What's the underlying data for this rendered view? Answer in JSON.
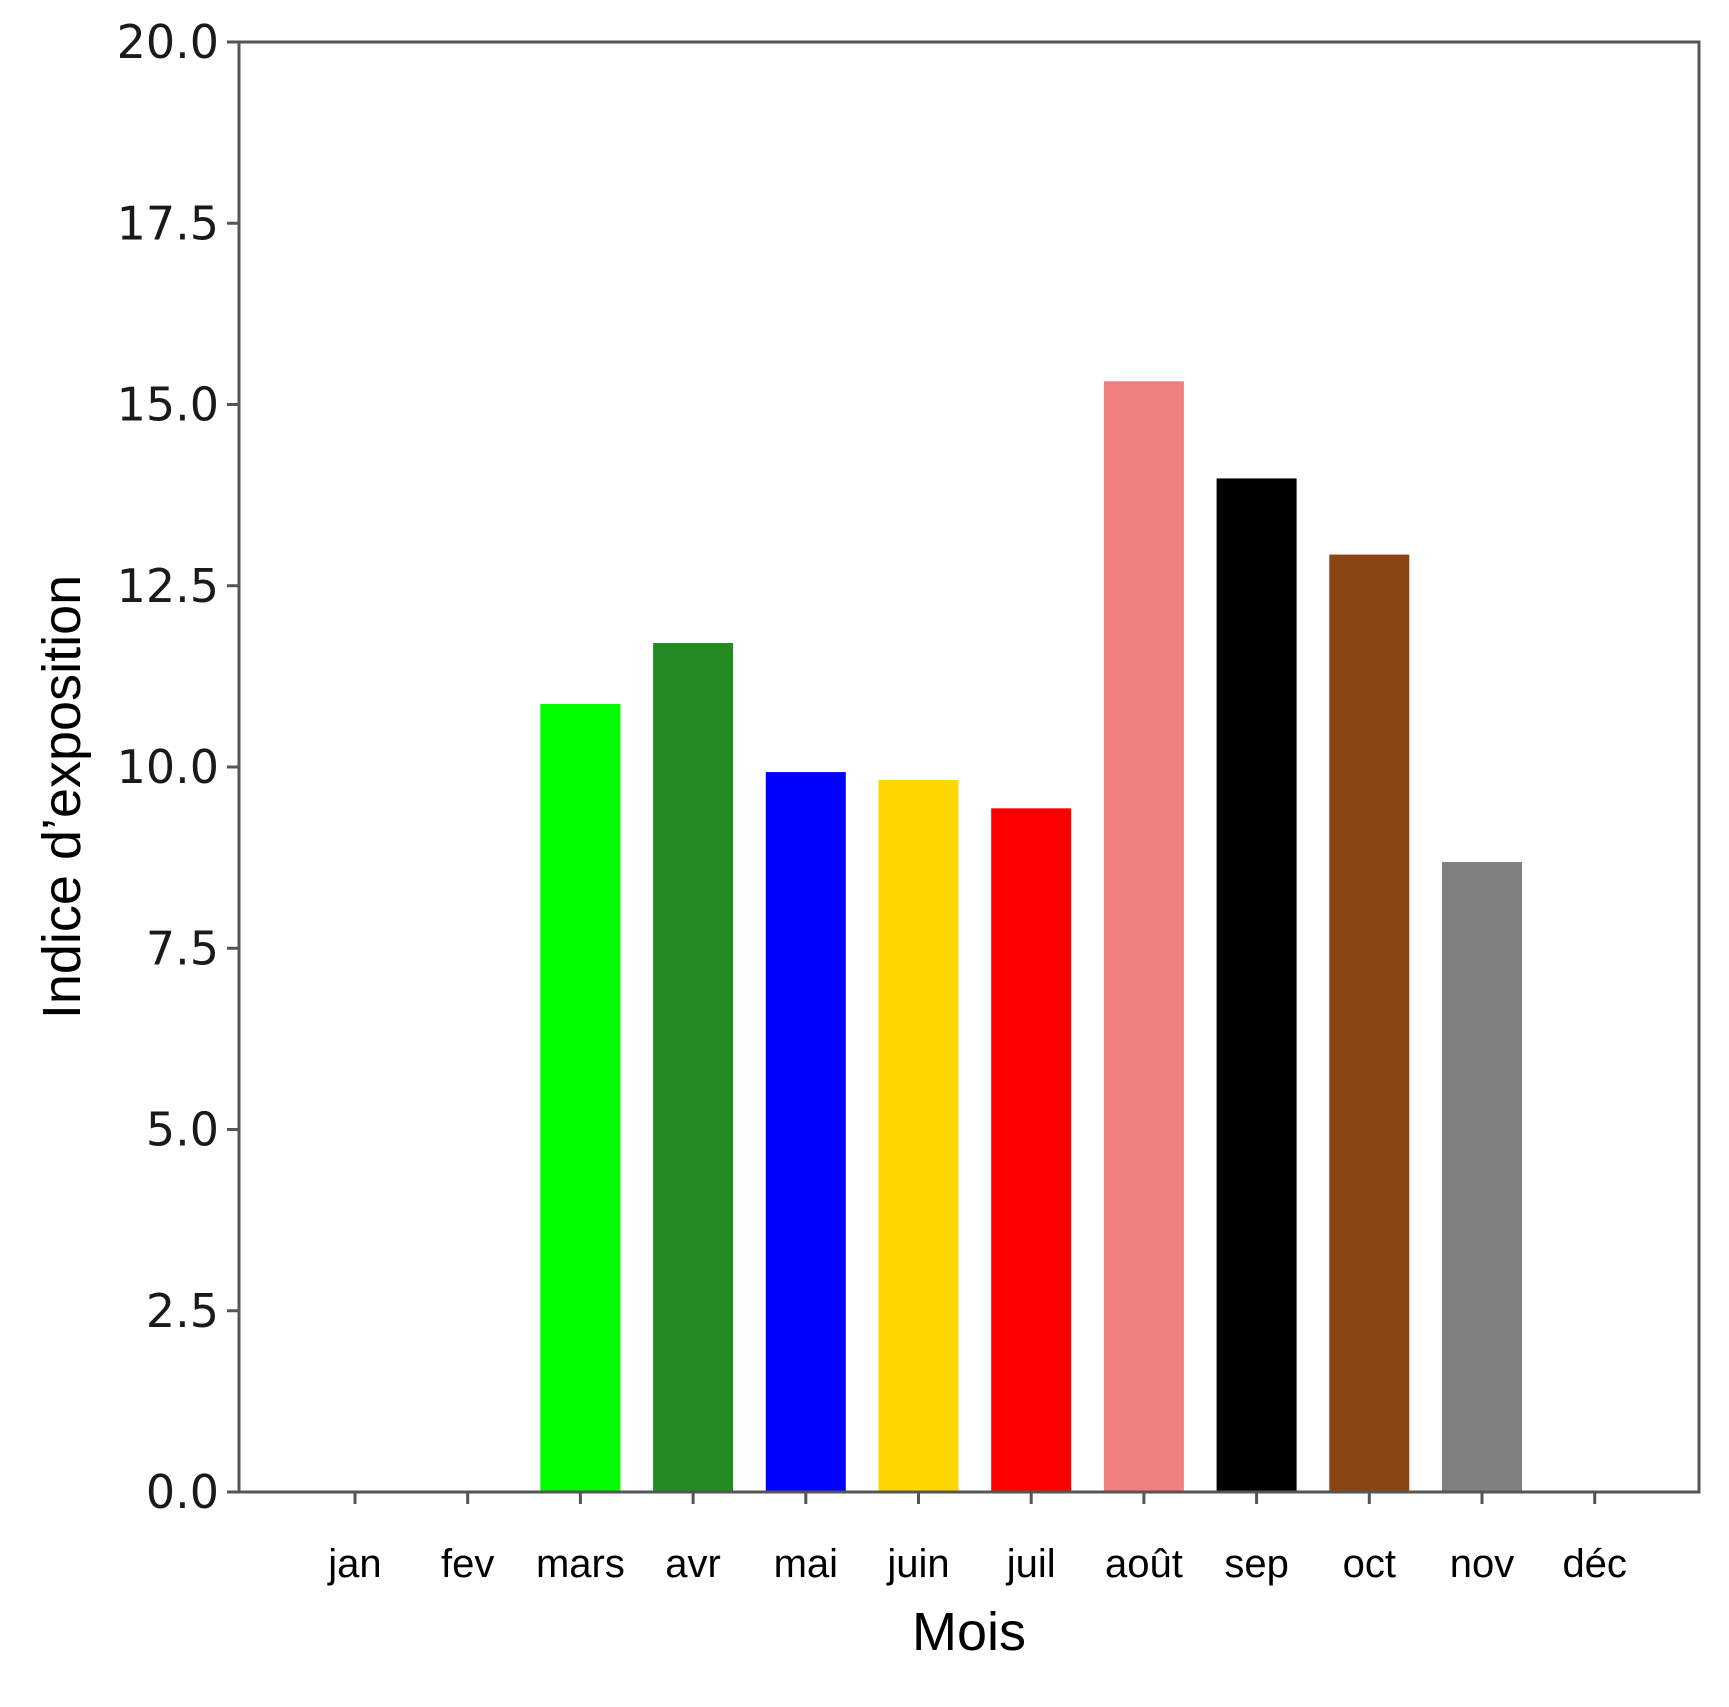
{
  "chart_data": {
    "type": "bar",
    "title": "",
    "xlabel": "Mois",
    "ylabel": "Indice d’exposition",
    "ylim": [
      0,
      20
    ],
    "yticks": [
      "0.0",
      "2.5",
      "5.0",
      "7.5",
      "10.0",
      "12.5",
      "15.0",
      "17.5",
      "20.0"
    ],
    "grid": false,
    "legend": null,
    "categories": [
      "jan",
      "fev",
      "mars",
      "avr",
      "mai",
      "juin",
      "juil",
      "août",
      "sep",
      "oct",
      "nov",
      "déc"
    ],
    "values": [
      0,
      0,
      10.87,
      11.71,
      9.93,
      9.82,
      9.43,
      15.32,
      13.98,
      12.93,
      8.69,
      0
    ],
    "colors": [
      "#00ff00",
      "#00ff00",
      "#00ff00",
      "#228b22",
      "#0000ff",
      "#ffd700",
      "#ff0000",
      "#f08080",
      "#000000",
      "#8b4513",
      "#808080",
      "#808080"
    ]
  }
}
